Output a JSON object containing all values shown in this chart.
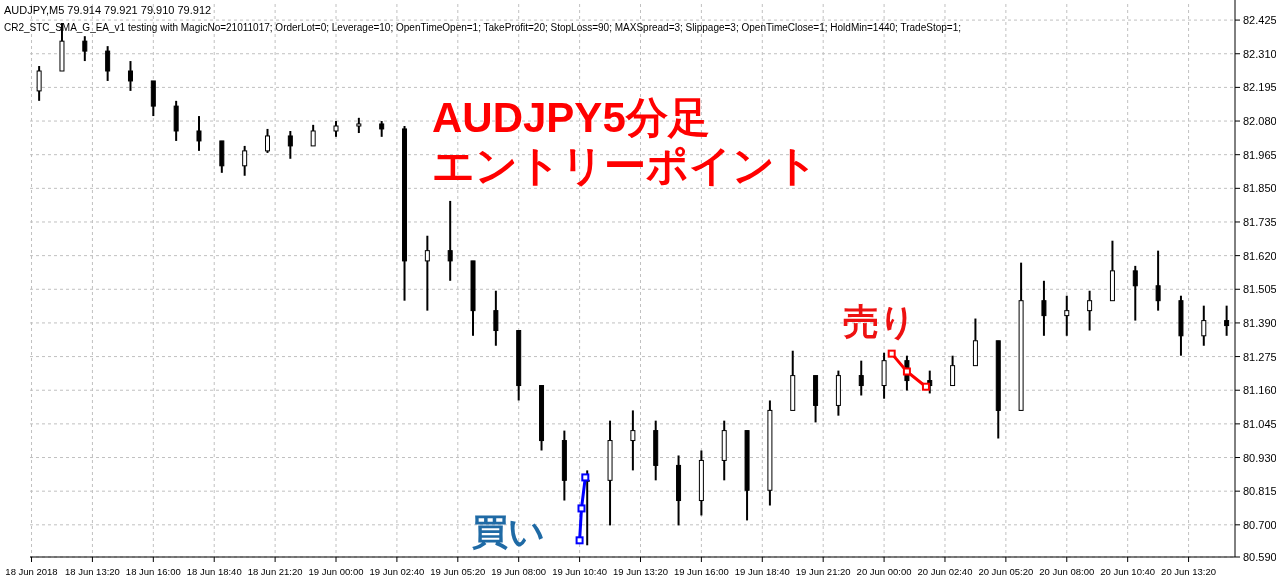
{
  "chart_data": {
    "type": "candlestick",
    "title": "AUDJPY5分足",
    "subtitle": "エントリーポイント",
    "color": "#000000",
    "grid": true,
    "annotations": [
      "AUDJPY,M5  79.914 79.921 79.910 79.912",
      "CR2_STC_SMA_G_EA_v1 testing with MagicNo=21011017; OrderLot=0; Leverage=10; OpenTimeOpen=1; TakeProfit=20; StopLoss=90; MAXSpread=3; Slippage=3; OpenTimeClose=1; HoldMin=1440; TradeStop=1;",
      {
        "text": "売り",
        "x": "2018-06-20T00:20",
        "y": 81.285
      },
      {
        "text": "買い",
        "x": "2018-06-19T10:40",
        "y": 80.647
      }
    ],
    "xlim": [
      "2018-06-18T10:36",
      "2018-06-20T15:22"
    ],
    "xticks": [
      {
        "value": "2018-06-18T10:40",
        "label": "18 Jun 2018"
      },
      {
        "value": "2018-06-18T13:20",
        "label": "18 Jun 13:20"
      },
      {
        "value": "2018-06-18T16:00",
        "label": "18 Jun 16:00"
      },
      {
        "value": "2018-06-18T18:40",
        "label": "18 Jun 18:40"
      },
      {
        "value": "2018-06-18T21:20",
        "label": "18 Jun 21:20"
      },
      {
        "value": "2018-06-19T00:00",
        "label": "19 Jun 00:00"
      },
      {
        "value": "2018-06-19T02:40",
        "label": "19 Jun 02:40"
      },
      {
        "value": "2018-06-19T05:20",
        "label": "19 Jun 05:20"
      },
      {
        "value": "2018-06-19T08:00",
        "label": "19 Jun 08:00"
      },
      {
        "value": "2018-06-19T10:40",
        "label": "19 Jun 10:40"
      },
      {
        "value": "2018-06-19T13:20",
        "label": "19 Jun 13:20"
      },
      {
        "value": "2018-06-19T16:00",
        "label": "19 Jun 16:00"
      },
      {
        "value": "2018-06-19T18:40",
        "label": "19 Jun 18:40"
      },
      {
        "value": "2018-06-19T21:20",
        "label": "19 Jun 21:20"
      },
      {
        "value": "2018-06-20T00:00",
        "label": "20 Jun 00:00"
      },
      {
        "value": "2018-06-20T02:40",
        "label": "20 Jun 02:40"
      },
      {
        "value": "2018-06-20T05:20",
        "label": "20 Jun 05:20"
      },
      {
        "value": "2018-06-20T08:00",
        "label": "20 Jun 08:00"
      },
      {
        "value": "2018-06-20T10:40",
        "label": "20 Jun 10:40"
      },
      {
        "value": "2018-06-20T13:20",
        "label": "20 Jun 13:20"
      }
    ],
    "ylim": [
      80.59,
      82.48
    ],
    "yticks": [
      {
        "value": 80.59,
        "label": "80.590"
      },
      {
        "value": 80.7,
        "label": "80.700"
      },
      {
        "value": 80.815,
        "label": "80.815"
      },
      {
        "value": 80.93,
        "label": "80.930"
      },
      {
        "value": 81.045,
        "label": "81.045"
      },
      {
        "value": 81.16,
        "label": "81.160"
      },
      {
        "value": 81.275,
        "label": "81.275"
      },
      {
        "value": 81.39,
        "label": "81.390"
      },
      {
        "value": 81.505,
        "label": "81.505"
      },
      {
        "value": 81.62,
        "label": "81.620"
      },
      {
        "value": 81.735,
        "label": "81.735"
      },
      {
        "value": 81.85,
        "label": "81.850"
      },
      {
        "value": 81.965,
        "label": "81.965"
      },
      {
        "value": 82.08,
        "label": "82.080"
      },
      {
        "value": 82.195,
        "label": "82.195"
      },
      {
        "value": 82.31,
        "label": "82.310"
      },
      {
        "value": 82.425,
        "label": "82.425"
      }
    ],
    "x": [
      "2018-06-18T11:00",
      "2018-06-18T12:00",
      "2018-06-18T13:00",
      "2018-06-18T14:00",
      "2018-06-18T15:00",
      "2018-06-18T16:00",
      "2018-06-18T17:00",
      "2018-06-18T18:00",
      "2018-06-18T19:00",
      "2018-06-18T20:00",
      "2018-06-18T21:00",
      "2018-06-18T22:00",
      "2018-06-18T23:00",
      "2018-06-19T00:00",
      "2018-06-19T01:00",
      "2018-06-19T02:00",
      "2018-06-19T03:00",
      "2018-06-19T04:00",
      "2018-06-19T05:00",
      "2018-06-19T06:00",
      "2018-06-19T07:00",
      "2018-06-19T08:00",
      "2018-06-19T09:00",
      "2018-06-19T10:00",
      "2018-06-19T11:00",
      "2018-06-19T12:00",
      "2018-06-19T13:00",
      "2018-06-19T14:00",
      "2018-06-19T15:00",
      "2018-06-19T16:00",
      "2018-06-19T17:00",
      "2018-06-19T18:00",
      "2018-06-19T19:00",
      "2018-06-19T20:00",
      "2018-06-19T21:00",
      "2018-06-19T22:00",
      "2018-06-19T23:00",
      "2018-06-20T00:00",
      "2018-06-20T01:00",
      "2018-06-20T02:00",
      "2018-06-20T03:00",
      "2018-06-20T04:00",
      "2018-06-20T05:00",
      "2018-06-20T06:00",
      "2018-06-20T07:00",
      "2018-06-20T08:00",
      "2018-06-20T09:00",
      "2018-06-20T10:00",
      "2018-06-20T11:00",
      "2018-06-20T12:00",
      "2018-06-20T13:00",
      "2018-06-20T14:00",
      "2018-06-20T15:00"
    ],
    "ohlc": [
      [
        82.183,
        82.268,
        82.149,
        82.251
      ],
      [
        82.251,
        82.415,
        82.251,
        82.353
      ],
      [
        82.353,
        82.37,
        82.285,
        82.319
      ],
      [
        82.319,
        82.336,
        82.217,
        82.251
      ],
      [
        82.251,
        82.285,
        82.183,
        82.217
      ],
      [
        82.217,
        82.217,
        82.097,
        82.131
      ],
      [
        82.131,
        82.149,
        82.012,
        82.046
      ],
      [
        82.046,
        82.097,
        81.978,
        82.012
      ],
      [
        82.012,
        82.012,
        81.903,
        81.927
      ],
      [
        81.927,
        81.995,
        81.893,
        81.978
      ],
      [
        81.978,
        82.053,
        81.971,
        82.029
      ],
      [
        82.029,
        82.046,
        81.951,
        81.995
      ],
      [
        81.995,
        82.067,
        81.995,
        82.046
      ],
      [
        82.046,
        82.08,
        82.026,
        82.063
      ],
      [
        82.063,
        82.091,
        82.039,
        82.07
      ],
      [
        82.07,
        82.08,
        82.026,
        82.053
      ],
      [
        82.053,
        82.063,
        81.466,
        81.602
      ],
      [
        81.602,
        81.688,
        81.432,
        81.637
      ],
      [
        81.637,
        81.807,
        81.534,
        81.602
      ],
      [
        81.602,
        81.602,
        81.346,
        81.432
      ],
      [
        81.432,
        81.5,
        81.312,
        81.364
      ],
      [
        81.364,
        81.364,
        81.125,
        81.176
      ],
      [
        81.176,
        81.176,
        80.954,
        80.988
      ],
      [
        80.988,
        81.022,
        80.783,
        80.852
      ],
      [
        80.852,
        80.886,
        80.63,
        80.852
      ],
      [
        80.852,
        81.056,
        80.698,
        80.988
      ],
      [
        80.988,
        81.091,
        80.886,
        81.022
      ],
      [
        81.022,
        81.056,
        80.852,
        80.903
      ],
      [
        80.903,
        80.937,
        80.698,
        80.783
      ],
      [
        80.783,
        80.954,
        80.732,
        80.92
      ],
      [
        80.92,
        81.056,
        80.852,
        81.022
      ],
      [
        81.022,
        81.022,
        80.715,
        80.818
      ],
      [
        80.818,
        81.125,
        80.766,
        81.091
      ],
      [
        81.091,
        81.295,
        81.091,
        81.21
      ],
      [
        81.21,
        81.21,
        81.05,
        81.108
      ],
      [
        81.108,
        81.227,
        81.073,
        81.21
      ],
      [
        81.21,
        81.261,
        81.142,
        81.176
      ],
      [
        81.176,
        81.288,
        81.131,
        81.261
      ],
      [
        81.261,
        81.278,
        81.159,
        81.193
      ],
      [
        81.193,
        81.227,
        81.149,
        81.176
      ],
      [
        81.176,
        81.278,
        81.176,
        81.244
      ],
      [
        81.244,
        81.405,
        81.244,
        81.329
      ],
      [
        81.329,
        81.329,
        80.995,
        81.091
      ],
      [
        81.091,
        81.596,
        81.091,
        81.466
      ],
      [
        81.466,
        81.534,
        81.346,
        81.415
      ],
      [
        81.415,
        81.483,
        81.346,
        81.432
      ],
      [
        81.432,
        81.5,
        81.364,
        81.466
      ],
      [
        81.466,
        81.671,
        81.466,
        81.568
      ],
      [
        81.568,
        81.585,
        81.398,
        81.517
      ],
      [
        81.517,
        81.637,
        81.432,
        81.466
      ],
      [
        81.466,
        81.483,
        81.278,
        81.346
      ],
      [
        81.346,
        81.449,
        81.312,
        81.398
      ],
      [
        81.398,
        81.449,
        81.346,
        81.381
      ]
    ],
    "series": [
      {
        "type": "line",
        "color": "#0000ff",
        "marker": "square",
        "x": [
          "2018-06-19T10:40",
          "2018-06-19T10:45",
          "2018-06-19T10:55"
        ],
        "values": [
          80.647,
          80.756,
          80.862
        ]
      },
      {
        "type": "line",
        "color": "#ff0000",
        "marker": "square",
        "x": [
          "2018-06-20T00:20",
          "2018-06-20T01:00",
          "2018-06-20T01:50"
        ],
        "values": [
          81.285,
          81.224,
          81.172
        ]
      }
    ]
  }
}
